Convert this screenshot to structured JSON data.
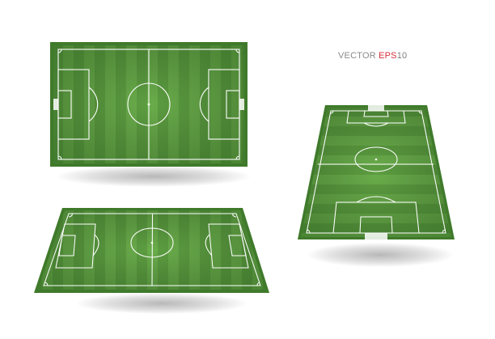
{
  "caption": {
    "word1": "VECTOR ",
    "word2": "EPS",
    "word3": "10"
  },
  "colors": {
    "grass_light": "#6aad4b",
    "grass_dark": "#55963a",
    "border": "#3f7a2b",
    "line": "#ffffff",
    "caption_grey": "#8a8a8a",
    "caption_red": "#d62f3a"
  },
  "fields": [
    {
      "view": "top",
      "icon": "soccer-field-top-view"
    },
    {
      "view": "perspective-landscape",
      "icon": "soccer-field-landscape-perspective"
    },
    {
      "view": "perspective-portrait",
      "icon": "soccer-field-portrait-perspective"
    }
  ]
}
